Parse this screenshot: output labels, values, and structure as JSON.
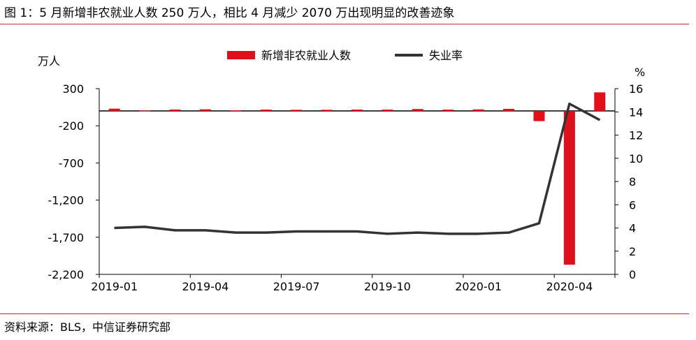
{
  "title": "图 1：5 月新增非农就业人数 250 万人，相比 4 月减少 2070 万出现明显的改善迹象",
  "source": "资料来源：BLS，中信证券研究部",
  "chart_data": {
    "type": "bar+line",
    "left_unit": "万人",
    "right_unit": "%",
    "left_ylim": [
      -2200,
      300
    ],
    "right_ylim": [
      0,
      16
    ],
    "left_ticks": [
      "300",
      "-200",
      "-700",
      "-1,200",
      "-1,700",
      "-2,200"
    ],
    "left_tick_values": [
      300,
      -200,
      -700,
      -1200,
      -1700,
      -2200
    ],
    "right_ticks": [
      "16",
      "14",
      "12",
      "10",
      "8",
      "6",
      "4",
      "2",
      "0"
    ],
    "right_tick_values": [
      16,
      14,
      12,
      10,
      8,
      6,
      4,
      2,
      0
    ],
    "x_tick_labels": [
      "2019-01",
      "2019-04",
      "2019-07",
      "2019-10",
      "2020-01",
      "2020-04"
    ],
    "x_tick_indices": [
      0,
      3,
      6,
      9,
      12,
      15
    ],
    "categories": [
      "2019-01",
      "2019-02",
      "2019-03",
      "2019-04",
      "2019-05",
      "2019-06",
      "2019-07",
      "2019-08",
      "2019-09",
      "2019-10",
      "2019-11",
      "2019-12",
      "2020-01",
      "2020-02",
      "2020-03",
      "2020-04",
      "2020-05"
    ],
    "series": [
      {
        "name": "新增非农就业人数",
        "type": "bar",
        "axis": "left",
        "color": "#e0101b",
        "values": [
          31,
          5,
          19,
          22,
          7,
          18,
          16,
          16,
          19,
          18,
          26,
          18,
          21,
          28,
          -137,
          -2070,
          250
        ]
      },
      {
        "name": "失业率",
        "type": "line",
        "axis": "right",
        "color": "#333333",
        "values": [
          4.0,
          4.1,
          3.8,
          3.8,
          3.6,
          3.6,
          3.7,
          3.7,
          3.7,
          3.5,
          3.6,
          3.5,
          3.5,
          3.6,
          4.4,
          14.7,
          13.3
        ]
      }
    ],
    "legend": "top-center"
  }
}
